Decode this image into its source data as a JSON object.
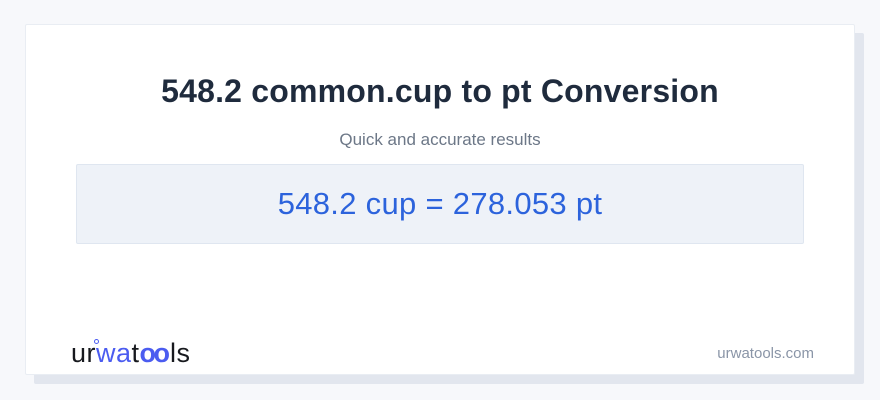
{
  "colors": {
    "page_bg": "#f7f8fb",
    "card_bg": "#ffffff",
    "card_border": "#e9edf3",
    "card_shadow": "#e2e6ee",
    "title": "#1f2b3d",
    "subtitle": "#6c7787",
    "result_bg": "#eef2f8",
    "result_border": "#dfe6f0",
    "result_text": "#2c63dc",
    "domain_text": "#8a95a7",
    "logo_dark": "#17191e",
    "logo_blue": "#4b5cf0"
  },
  "header": {
    "title": "548.2 common.cup to pt Conversion",
    "subtitle": "Quick and accurate results"
  },
  "result": {
    "text": "548.2 cup = 278.053 pt",
    "value_from": "548.2",
    "unit_from": "cup",
    "value_to": "278.053",
    "unit_to": "pt"
  },
  "footer": {
    "logo": {
      "seg_ur": "ur",
      "seg_wa": "wa",
      "seg_t": "t",
      "seg_oo": "oo",
      "seg_ls": "ls"
    },
    "domain": "urwatools.com"
  }
}
